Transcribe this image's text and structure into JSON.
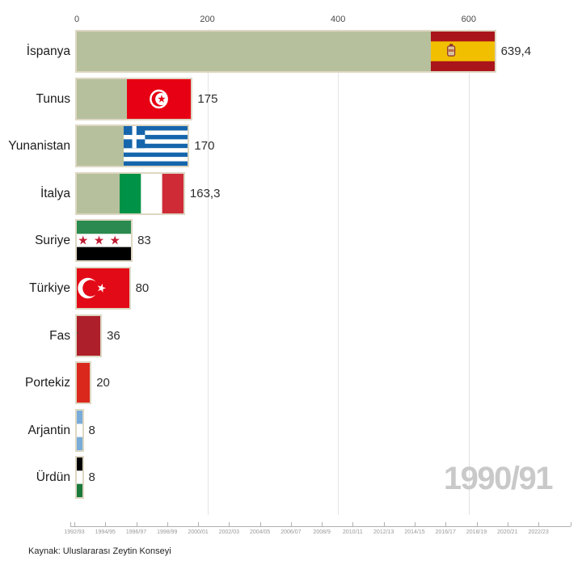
{
  "big_year_label": "1990/91",
  "source_caption": "Kaynak: Uluslararası Zeytin Konseyi",
  "top_axis": {
    "tick_values": [
      0,
      200,
      400,
      600
    ],
    "tick_labels": [
      "0",
      "200",
      "400",
      "600"
    ]
  },
  "timeline_axis": {
    "labels": [
      "1992/93",
      "1994/95",
      "1996/97",
      "1998/99",
      "2000/01",
      "2002/03",
      "2004/05",
      "2006/07",
      "2008/9",
      "2010/11",
      "2012/13",
      "2014/15",
      "2016/17",
      "2018/19",
      "2020/21",
      "2022/23"
    ]
  },
  "chart_data": {
    "type": "bar",
    "orientation": "horizontal",
    "title": "",
    "xlabel": "",
    "ylabel": "",
    "x_ticks": [
      0,
      200,
      400,
      600
    ],
    "xlim": [
      0,
      760
    ],
    "grid": "vertical",
    "legend": "none",
    "categories": [
      "İspanya",
      "Tunus",
      "Yunanistan",
      "İtalya",
      "Suriye",
      "Türkiye",
      "Fas",
      "Portekiz",
      "Arjantin",
      "Ürdün"
    ],
    "values": [
      639.4,
      175,
      170,
      163.3,
      83,
      80,
      36,
      20,
      8,
      8
    ],
    "value_labels": [
      "639,4",
      "175",
      "170",
      "163,3",
      "83",
      "80",
      "36",
      "20",
      "8",
      "8"
    ],
    "flags": [
      "spain",
      "tunisia",
      "greece",
      "italy",
      "syria",
      "turkey",
      "morocco",
      "portugal",
      "argentina",
      "jordan"
    ],
    "bar_color": "#b6c09d"
  },
  "colors": {
    "bar": "#b6c09d",
    "bar_edge": "#ddd7c3",
    "gridline": "#e3e3e3",
    "axis_text": "#4a4a4a",
    "big_year": "#c9c9c9",
    "timeline_text": "#9a9a9a"
  }
}
